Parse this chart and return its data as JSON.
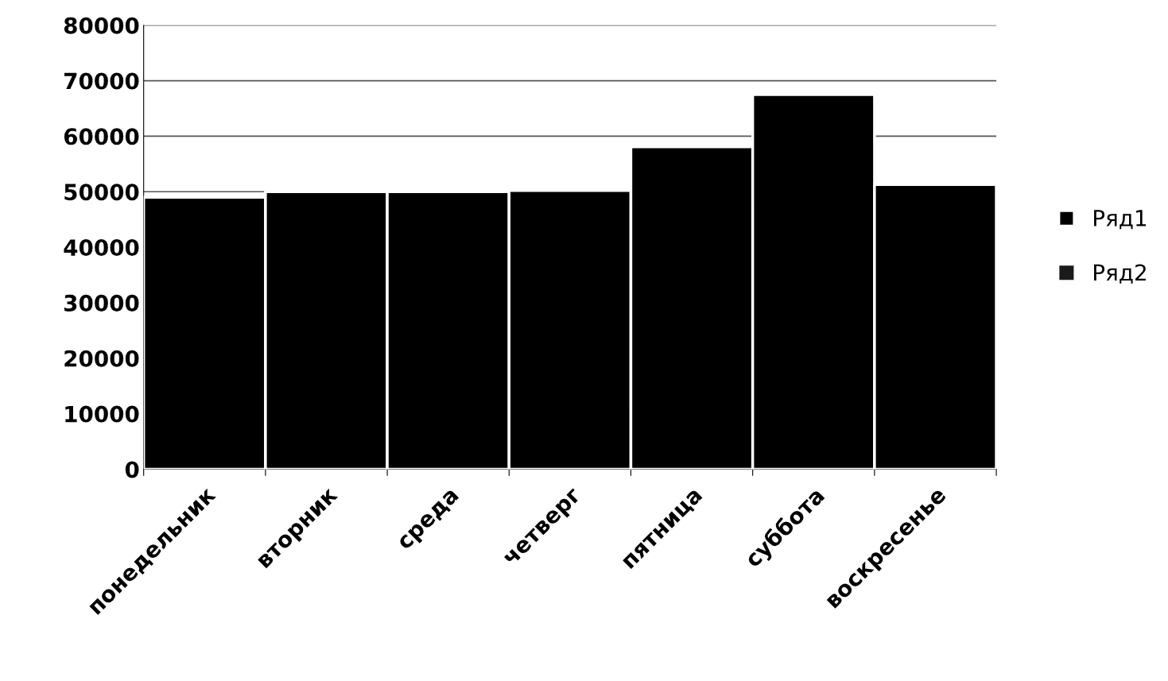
{
  "chart_data": {
    "type": "bar",
    "stacked": true,
    "categories": [
      "понедельник",
      "вторник",
      "среда",
      "четверг",
      "пятница",
      "суббота",
      "воскресенье"
    ],
    "series": [
      {
        "name": "Ряд1",
        "color": "#000000",
        "values": [
          49000,
          50000,
          50000,
          50200,
          58100,
          67500,
          51300
        ]
      },
      {
        "name": "Ряд2",
        "color": "#1a1a1a",
        "values": [
          null,
          null,
          null,
          null,
          null,
          null,
          null
        ]
      }
    ],
    "ylim": [
      0,
      80000
    ],
    "yticks": [
      0,
      10000,
      20000,
      30000,
      40000,
      50000,
      60000,
      70000,
      80000
    ],
    "grid": "y",
    "legend": "right"
  }
}
